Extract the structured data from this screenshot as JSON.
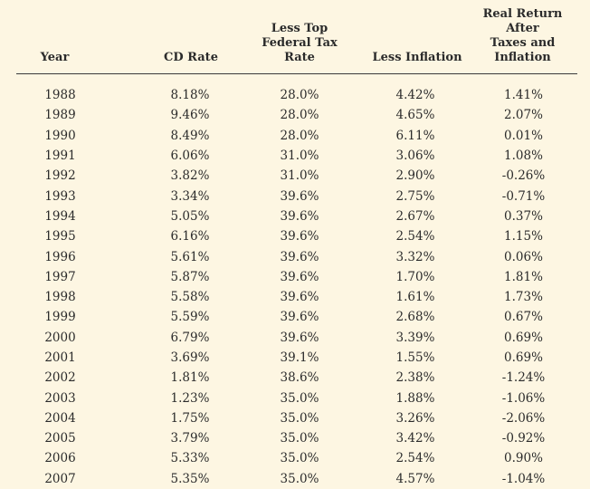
{
  "table": {
    "headers": {
      "year": "Year",
      "cd_rate": "CD Rate",
      "tax_line1": "Less Top",
      "tax_line2": "Federal Tax Rate",
      "inflation": "Less Inflation",
      "real_line1": "Real Return After",
      "real_line2": "Taxes and Inflation"
    },
    "rows": [
      {
        "year": "1988",
        "cd_rate": "8.18%",
        "tax_rate": "28.0%",
        "inflation": "4.42%",
        "real_return": "1.41%"
      },
      {
        "year": "1989",
        "cd_rate": "9.46%",
        "tax_rate": "28.0%",
        "inflation": "4.65%",
        "real_return": "2.07%"
      },
      {
        "year": "1990",
        "cd_rate": "8.49%",
        "tax_rate": "28.0%",
        "inflation": "6.11%",
        "real_return": "0.01%"
      },
      {
        "year": "1991",
        "cd_rate": "6.06%",
        "tax_rate": "31.0%",
        "inflation": "3.06%",
        "real_return": "1.08%"
      },
      {
        "year": "1992",
        "cd_rate": "3.82%",
        "tax_rate": "31.0%",
        "inflation": "2.90%",
        "real_return": "-0.26%"
      },
      {
        "year": "1993",
        "cd_rate": "3.34%",
        "tax_rate": "39.6%",
        "inflation": "2.75%",
        "real_return": "-0.71%"
      },
      {
        "year": "1994",
        "cd_rate": "5.05%",
        "tax_rate": "39.6%",
        "inflation": "2.67%",
        "real_return": "0.37%"
      },
      {
        "year": "1995",
        "cd_rate": "6.16%",
        "tax_rate": "39.6%",
        "inflation": "2.54%",
        "real_return": "1.15%"
      },
      {
        "year": "1996",
        "cd_rate": "5.61%",
        "tax_rate": "39.6%",
        "inflation": "3.32%",
        "real_return": "0.06%"
      },
      {
        "year": "1997",
        "cd_rate": "5.87%",
        "tax_rate": "39.6%",
        "inflation": "1.70%",
        "real_return": "1.81%"
      },
      {
        "year": "1998",
        "cd_rate": "5.58%",
        "tax_rate": "39.6%",
        "inflation": "1.61%",
        "real_return": "1.73%"
      },
      {
        "year": "1999",
        "cd_rate": "5.59%",
        "tax_rate": "39.6%",
        "inflation": "2.68%",
        "real_return": "0.67%"
      },
      {
        "year": "2000",
        "cd_rate": "6.79%",
        "tax_rate": "39.6%",
        "inflation": "3.39%",
        "real_return": "0.69%"
      },
      {
        "year": "2001",
        "cd_rate": "3.69%",
        "tax_rate": "39.1%",
        "inflation": "1.55%",
        "real_return": "0.69%"
      },
      {
        "year": "2002",
        "cd_rate": "1.81%",
        "tax_rate": "38.6%",
        "inflation": "2.38%",
        "real_return": "-1.24%"
      },
      {
        "year": "2003",
        "cd_rate": "1.23%",
        "tax_rate": "35.0%",
        "inflation": "1.88%",
        "real_return": "-1.06%"
      },
      {
        "year": "2004",
        "cd_rate": "1.75%",
        "tax_rate": "35.0%",
        "inflation": "3.26%",
        "real_return": "-2.06%"
      },
      {
        "year": "2005",
        "cd_rate": "3.79%",
        "tax_rate": "35.0%",
        "inflation": "3.42%",
        "real_return": "-0.92%"
      },
      {
        "year": "2006",
        "cd_rate": "5.33%",
        "tax_rate": "35.0%",
        "inflation": "2.54%",
        "real_return": "0.90%"
      },
      {
        "year": "2007",
        "cd_rate": "5.35%",
        "tax_rate": "35.0%",
        "inflation": "4.57%",
        "real_return": "-1.04%"
      }
    ]
  },
  "colors": {
    "background": "#fdf6e2",
    "text": "#2b2b2b",
    "rule": "#3a3a3a"
  }
}
